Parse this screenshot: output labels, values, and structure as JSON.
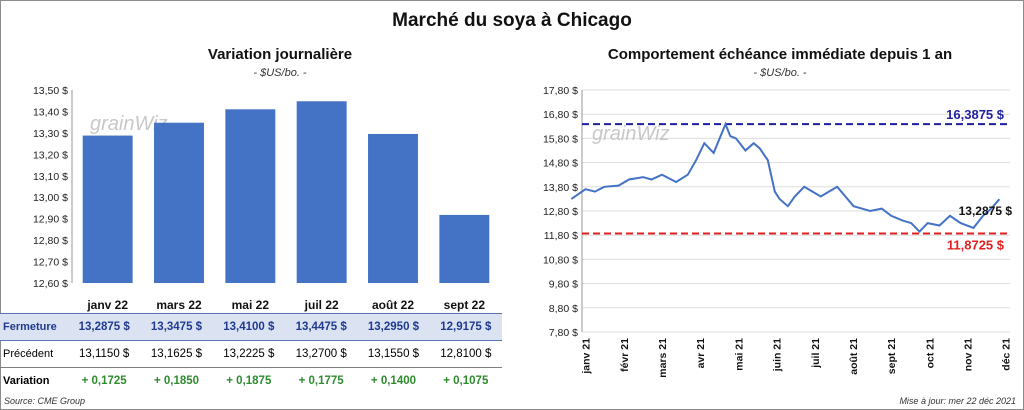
{
  "header": {
    "title": "Marché du soya à Chicago"
  },
  "colors": {
    "bar": "#4472c4",
    "line": "#4472c4",
    "max_line": "#1f1fa0",
    "min_line": "#e02020",
    "variation": "#2e8b2e",
    "watermark": "#c8c8c8"
  },
  "watermark": "grainWiz",
  "chart_data": [
    {
      "type": "bar",
      "title": "Variation journalière",
      "subtitle": "- $US/bo. -",
      "categories": [
        "janv 22",
        "mars 22",
        "mai 22",
        "juil 22",
        "août 22",
        "sept 22"
      ],
      "values": [
        13.2875,
        13.3475,
        13.41,
        13.4475,
        13.295,
        12.9175
      ],
      "ylim": [
        12.6,
        13.5
      ],
      "yticks": [
        "12,60 $",
        "12,70 $",
        "12,80 $",
        "12,90 $",
        "13,00 $",
        "13,10 $",
        "13,20 $",
        "13,30 $",
        "13,40 $",
        "13,50 $"
      ],
      "grid": false
    },
    {
      "type": "line",
      "title": "Comportement  échéance immédiate depuis 1 an",
      "subtitle": "- $US/bo. -",
      "ylim": [
        7.8,
        17.8
      ],
      "yticks": [
        "7,80 $",
        "8,80 $",
        "9,80 $",
        "10,80 $",
        "11,80 $",
        "12,80 $",
        "13,80 $",
        "14,80 $",
        "15,80 $",
        "16,80 $",
        "17,80 $"
      ],
      "xticks": [
        "janv 21",
        "févr 21",
        "mars 21",
        "avr 21",
        "mai 21",
        "juin 21",
        "juil 21",
        "août 21",
        "sept 21",
        "oct 21",
        "nov 21",
        "déc 21"
      ],
      "series": [
        {
          "x": [
            "2020-12-23",
            "2021-01-04",
            "2021-01-12",
            "2021-01-20",
            "2021-02-01",
            "2021-02-10",
            "2021-02-22",
            "2021-03-01",
            "2021-03-10",
            "2021-03-22",
            "2021-04-01",
            "2021-04-08",
            "2021-04-15",
            "2021-04-23",
            "2021-05-03",
            "2021-05-07",
            "2021-05-12",
            "2021-05-20",
            "2021-05-27",
            "2021-06-01",
            "2021-06-08",
            "2021-06-14",
            "2021-06-18",
            "2021-06-25",
            "2021-07-01",
            "2021-07-09",
            "2021-07-16",
            "2021-07-23",
            "2021-07-30",
            "2021-08-06",
            "2021-08-13",
            "2021-08-20",
            "2021-08-27",
            "2021-09-03",
            "2021-09-13",
            "2021-09-21",
            "2021-10-01",
            "2021-10-08",
            "2021-10-15",
            "2021-10-22",
            "2021-11-01",
            "2021-11-10",
            "2021-11-19",
            "2021-11-30",
            "2021-12-08",
            "2021-12-15",
            "2021-12-22"
          ],
          "y": [
            13.3,
            13.7,
            13.6,
            13.8,
            13.85,
            14.1,
            14.2,
            14.1,
            14.3,
            14.0,
            14.3,
            14.9,
            15.6,
            15.2,
            16.39,
            15.9,
            15.8,
            15.3,
            15.6,
            15.4,
            14.9,
            13.6,
            13.3,
            13.0,
            13.4,
            13.8,
            13.6,
            13.4,
            13.6,
            13.8,
            13.4,
            13.0,
            12.9,
            12.8,
            12.9,
            12.6,
            12.4,
            12.3,
            11.95,
            12.3,
            12.2,
            12.6,
            12.3,
            12.1,
            12.6,
            12.9,
            13.2875
          ]
        }
      ],
      "annotations": {
        "max": "16,3875 $",
        "min": "11,8725 $",
        "last": "13,2875 $"
      },
      "max_value": 16.3875,
      "min_value": 11.8725,
      "last_value": 13.2875,
      "grid": true
    }
  ],
  "table": {
    "rows": [
      {
        "label": "Fermeture",
        "values": [
          "13,2875  $",
          "13,3475  $",
          "13,4100  $",
          "13,4475  $",
          "13,2950  $",
          "12,9175  $"
        ]
      },
      {
        "label": "Précédent",
        "values": [
          "13,1150  $",
          "13,1625  $",
          "13,2225  $",
          "13,2700  $",
          "13,1550  $",
          "12,8100  $"
        ]
      },
      {
        "label": "Variation",
        "values": [
          "+ 0,1725",
          "+ 0,1850",
          "+ 0,1875",
          "+ 0,1775",
          "+ 0,1400",
          "+ 0,1075"
        ]
      }
    ]
  },
  "footer": {
    "source": "Source: CME Group",
    "updated": "Mise à jour: mer 22 déc 2021"
  }
}
